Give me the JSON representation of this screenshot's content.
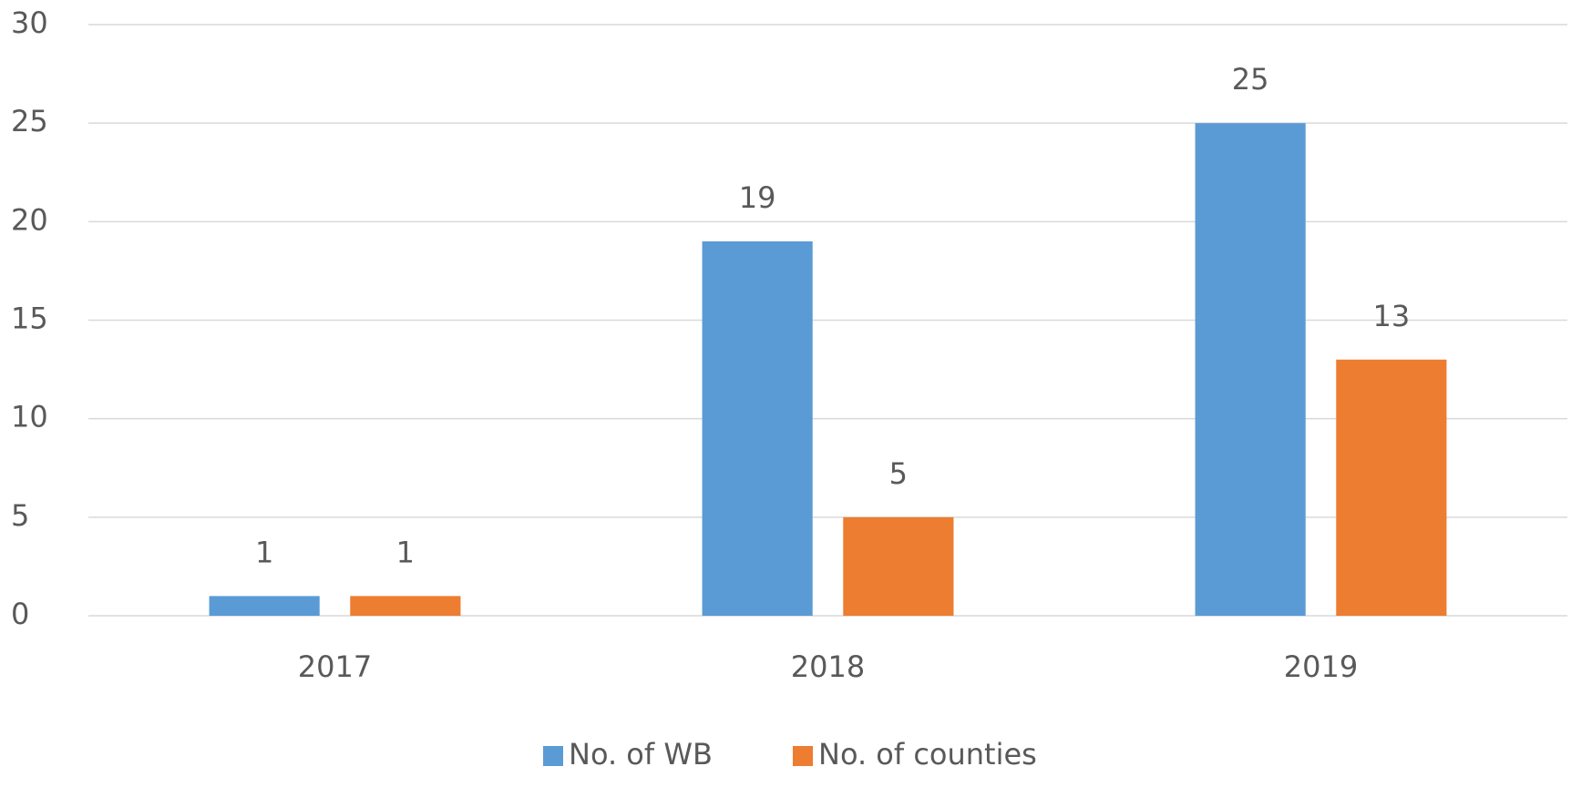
{
  "chart_data": {
    "type": "bar",
    "categories": [
      "2017",
      "2018",
      "2019"
    ],
    "series": [
      {
        "name": "No. of WB",
        "color": "#5b9bd5",
        "values": [
          1,
          19,
          25
        ]
      },
      {
        "name": "No. of counties",
        "color": "#ed7d31",
        "values": [
          1,
          5,
          13
        ]
      }
    ],
    "ylim": [
      0,
      30
    ],
    "yticks": [
      0,
      5,
      10,
      15,
      20,
      25,
      30
    ],
    "grid": true,
    "legend": "bottom"
  }
}
